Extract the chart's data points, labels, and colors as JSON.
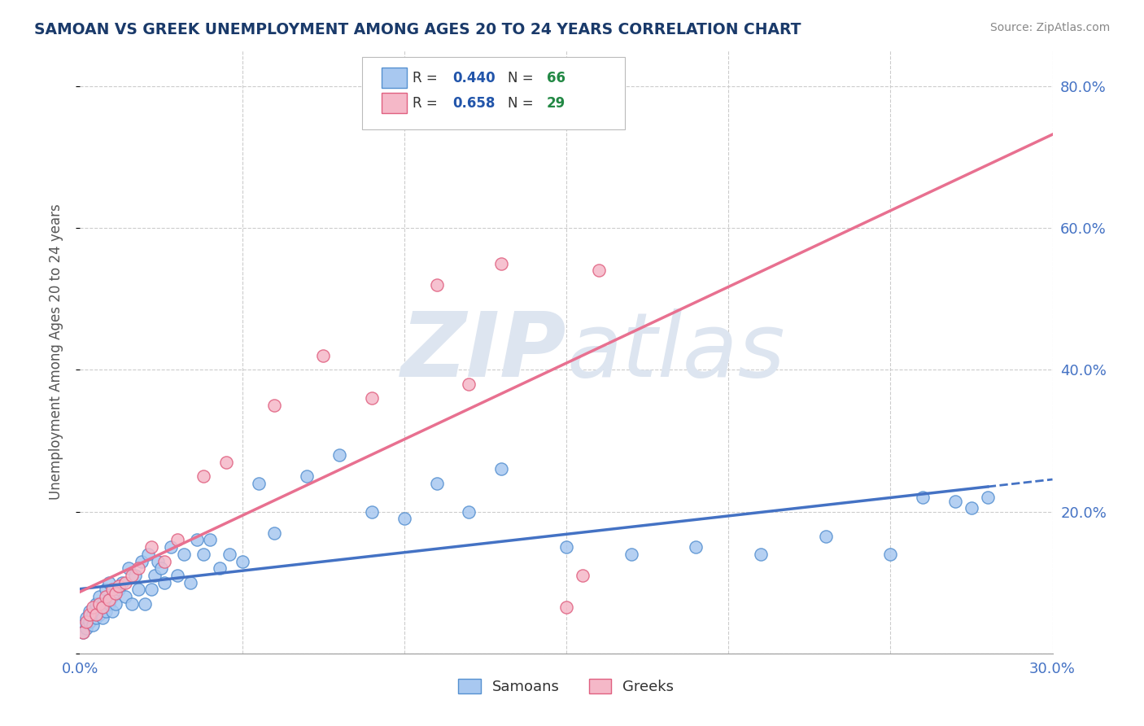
{
  "title": "SAMOAN VS GREEK UNEMPLOYMENT AMONG AGES 20 TO 24 YEARS CORRELATION CHART",
  "source": "Source: ZipAtlas.com",
  "ylabel": "Unemployment Among Ages 20 to 24 years",
  "xlim": [
    0.0,
    0.3
  ],
  "ylim": [
    0.0,
    0.85
  ],
  "xticks": [
    0.0,
    0.05,
    0.1,
    0.15,
    0.2,
    0.25,
    0.3
  ],
  "yticks": [
    0.0,
    0.2,
    0.4,
    0.6,
    0.8
  ],
  "samoans_R": 0.44,
  "samoans_N": 66,
  "greeks_R": 0.658,
  "greeks_N": 29,
  "samoan_color": "#a8c8f0",
  "greek_color": "#f5b8c8",
  "samoan_edge_color": "#5590d0",
  "greek_edge_color": "#e06080",
  "samoan_line_color": "#4472c4",
  "greek_line_color": "#e87090",
  "background_color": "#ffffff",
  "grid_color": "#cccccc",
  "watermark_color": "#dde5f0",
  "title_color": "#1a3a6a",
  "legend_R_color": "#2255aa",
  "legend_N_color": "#228844",
  "samoans_x": [
    0.001,
    0.001,
    0.002,
    0.002,
    0.003,
    0.003,
    0.004,
    0.004,
    0.005,
    0.005,
    0.005,
    0.006,
    0.006,
    0.007,
    0.007,
    0.008,
    0.008,
    0.009,
    0.009,
    0.01,
    0.01,
    0.011,
    0.012,
    0.013,
    0.014,
    0.015,
    0.016,
    0.017,
    0.018,
    0.019,
    0.02,
    0.021,
    0.022,
    0.023,
    0.024,
    0.025,
    0.026,
    0.028,
    0.03,
    0.032,
    0.034,
    0.036,
    0.038,
    0.04,
    0.043,
    0.046,
    0.05,
    0.055,
    0.06,
    0.07,
    0.08,
    0.09,
    0.1,
    0.11,
    0.12,
    0.13,
    0.15,
    0.17,
    0.19,
    0.21,
    0.23,
    0.25,
    0.26,
    0.27,
    0.275,
    0.28
  ],
  "samoans_y": [
    0.04,
    0.03,
    0.05,
    0.035,
    0.06,
    0.045,
    0.055,
    0.04,
    0.065,
    0.05,
    0.07,
    0.055,
    0.08,
    0.05,
    0.07,
    0.06,
    0.09,
    0.07,
    0.1,
    0.06,
    0.08,
    0.07,
    0.09,
    0.1,
    0.08,
    0.12,
    0.07,
    0.11,
    0.09,
    0.13,
    0.07,
    0.14,
    0.09,
    0.11,
    0.13,
    0.12,
    0.1,
    0.15,
    0.11,
    0.14,
    0.1,
    0.16,
    0.14,
    0.16,
    0.12,
    0.14,
    0.13,
    0.24,
    0.17,
    0.25,
    0.28,
    0.2,
    0.19,
    0.24,
    0.2,
    0.26,
    0.15,
    0.14,
    0.15,
    0.14,
    0.165,
    0.14,
    0.22,
    0.215,
    0.205,
    0.22
  ],
  "greeks_x": [
    0.001,
    0.002,
    0.003,
    0.004,
    0.005,
    0.006,
    0.007,
    0.008,
    0.009,
    0.01,
    0.011,
    0.012,
    0.014,
    0.016,
    0.018,
    0.022,
    0.026,
    0.03,
    0.038,
    0.045,
    0.06,
    0.075,
    0.09,
    0.11,
    0.12,
    0.13,
    0.15,
    0.155,
    0.16
  ],
  "greeks_y": [
    0.03,
    0.045,
    0.055,
    0.065,
    0.055,
    0.07,
    0.065,
    0.08,
    0.075,
    0.09,
    0.085,
    0.095,
    0.1,
    0.11,
    0.12,
    0.15,
    0.13,
    0.16,
    0.25,
    0.27,
    0.35,
    0.42,
    0.36,
    0.52,
    0.38,
    0.55,
    0.065,
    0.11,
    0.54
  ]
}
